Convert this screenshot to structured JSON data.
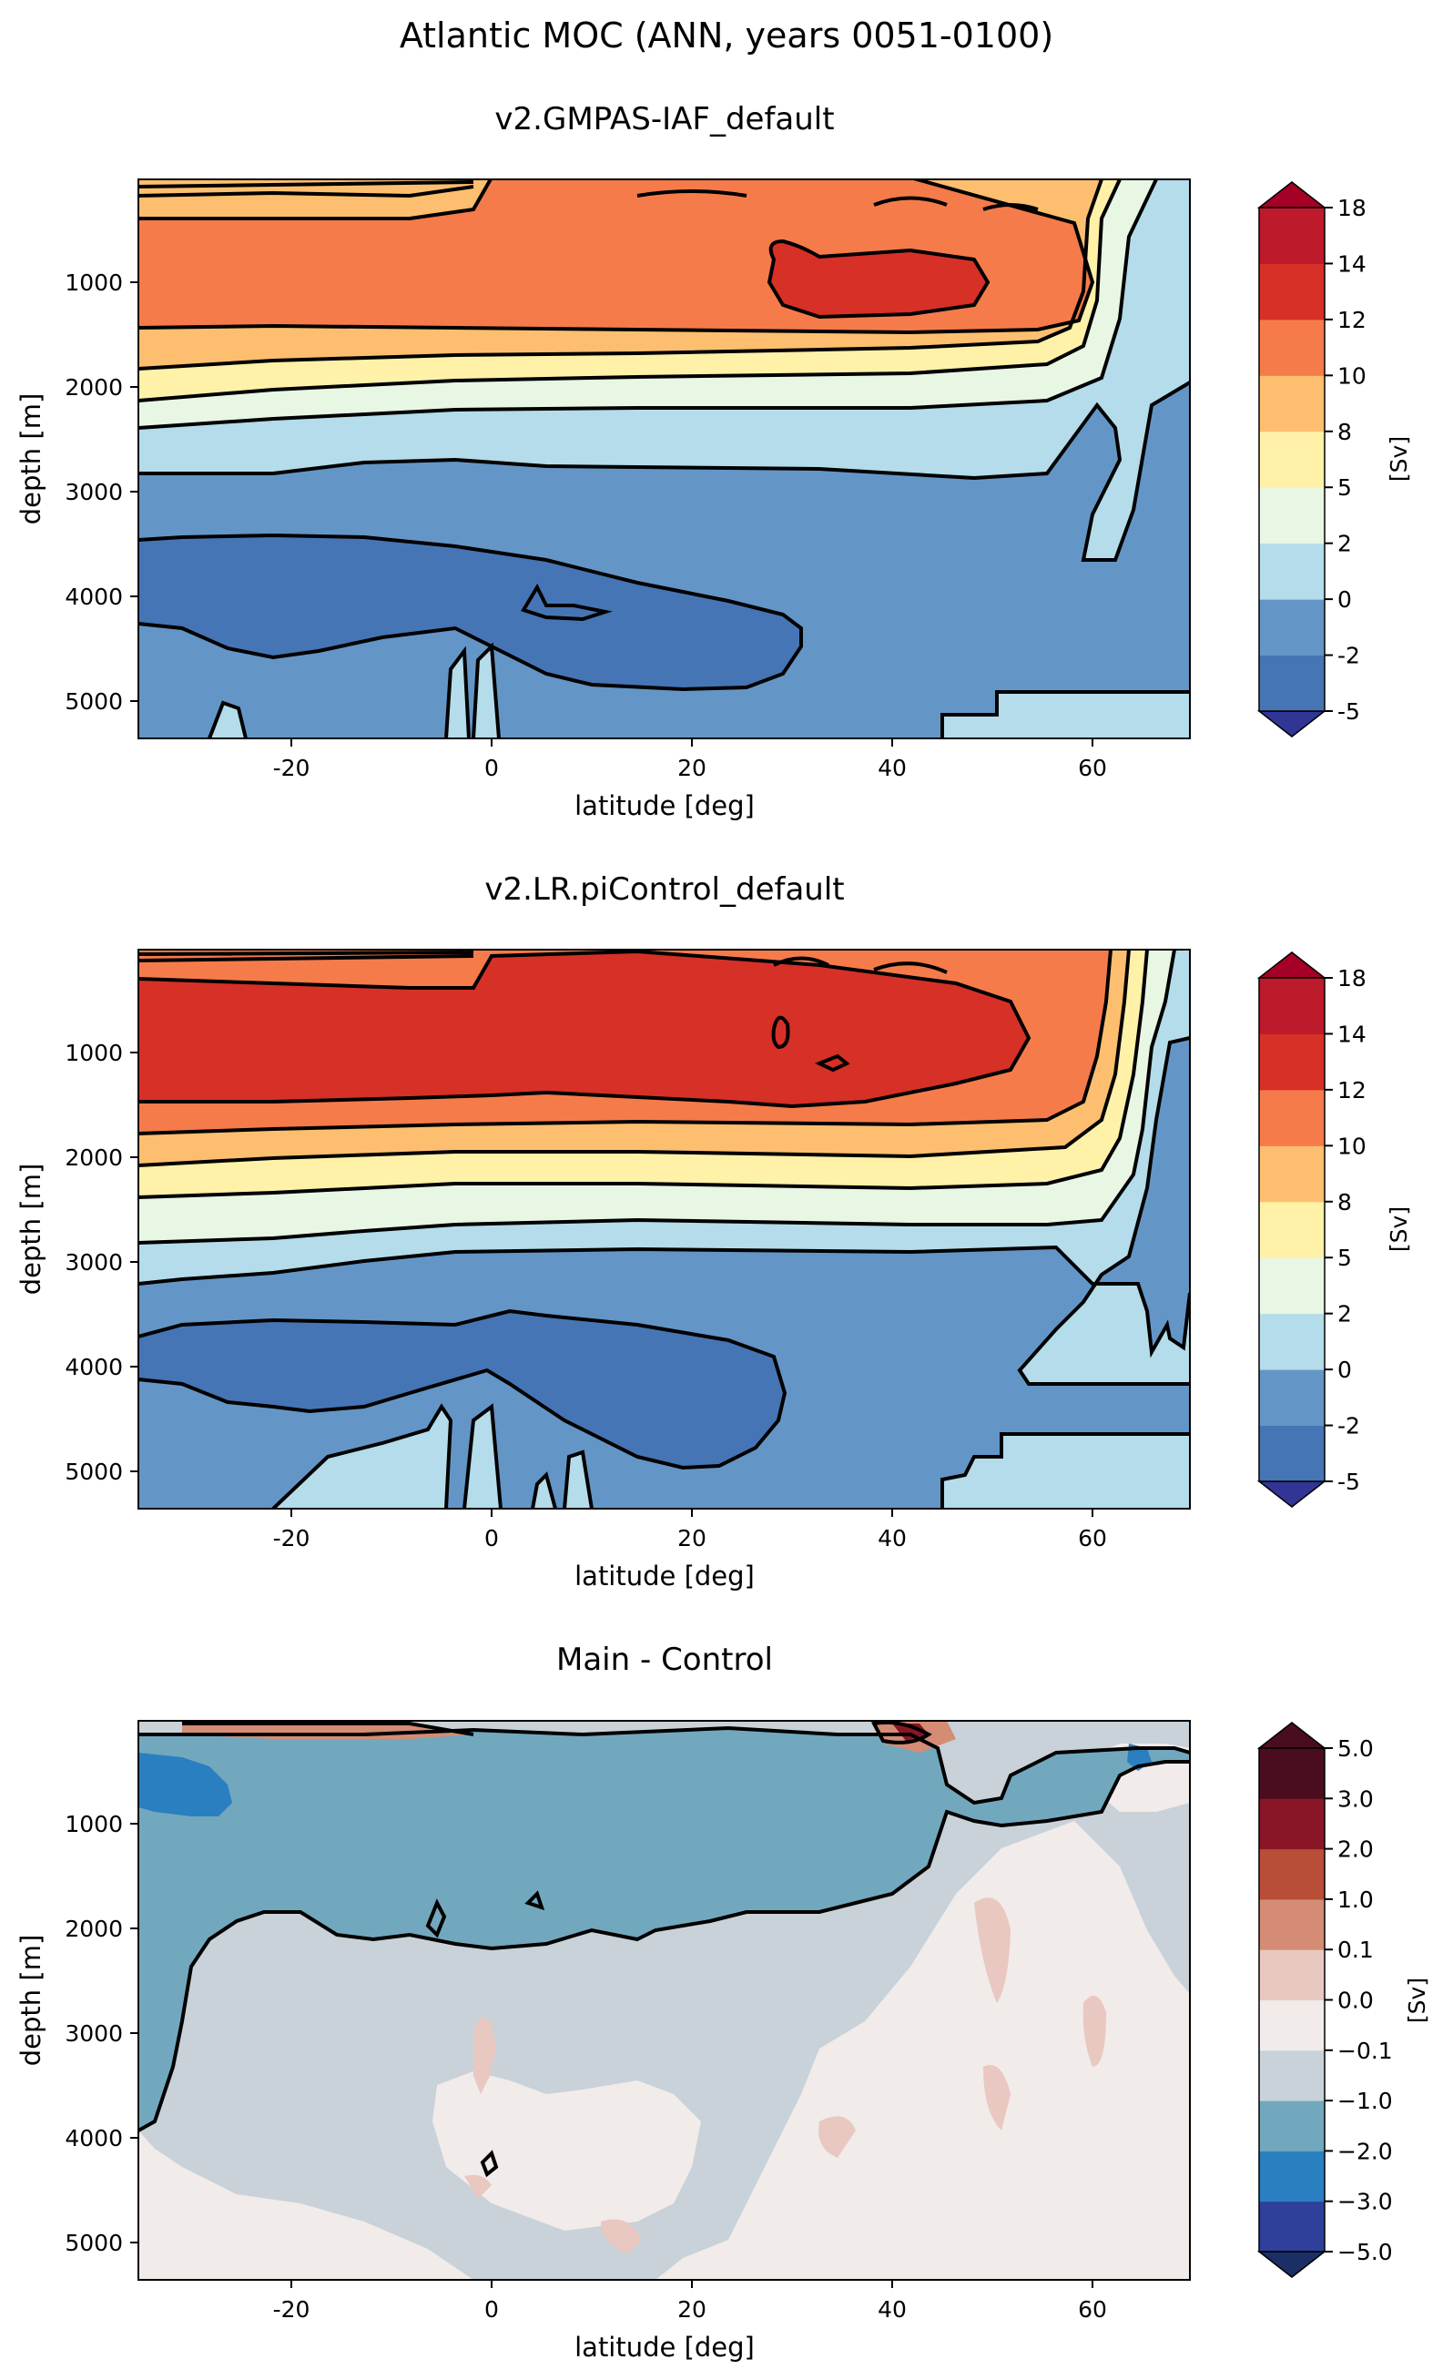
{
  "suptitle": "Atlantic MOC (ANN, years 0051-0100)",
  "colors": {
    "main_levels": [
      "#313695",
      "#4575b4",
      "#6396c6",
      "#b4dcea",
      "#e8f6e4",
      "#fff1a8",
      "#fdbf6f",
      "#f67b4a",
      "#d73027",
      "#bd1a2b",
      "#a50026"
    ],
    "diff_levels": [
      "#1b2f66",
      "#2e409a",
      "#2a7fc1",
      "#72a8bd",
      "#c8d2d8",
      "#f1ebea",
      "#e8c8c0",
      "#d48c74",
      "#b84e37",
      "#8a1526",
      "#4a0d1e"
    ]
  },
  "chart_data": [
    {
      "type": "contourf",
      "title": "v2.GMPAS-IAF_default",
      "xlabel": "latitude [deg]",
      "ylabel": "depth [m]",
      "xlim": [
        -35,
        70
      ],
      "ylim": [
        5400,
        0
      ],
      "xticks": [
        -20,
        0,
        20,
        40,
        60
      ],
      "yticks": [
        1000,
        2000,
        3000,
        4000,
        5000
      ],
      "colorbar": {
        "label": "[Sv]",
        "levels": [
          "-5",
          "-2",
          "0",
          "2",
          "5",
          "8",
          "10",
          "12",
          "14",
          "18"
        ],
        "extend": "both"
      },
      "features": [
        {
          "name": "deep-negative-cell",
          "level": -2,
          "lat_range": [
            -35,
            31
          ],
          "depth_range": [
            3500,
            4500
          ]
        },
        {
          "name": "upper-overturning-core",
          "level": 12,
          "lat_range": [
            -35,
            60
          ],
          "depth_range": [
            400,
            1500
          ]
        },
        {
          "name": "max-core",
          "level": 14,
          "lat_range": [
            28,
            53
          ],
          "depth_range": [
            600,
            1300
          ],
          "value": 14
        }
      ]
    },
    {
      "type": "contourf",
      "title": "v2.LR.piControl_default",
      "xlabel": "latitude [deg]",
      "ylabel": "depth [m]",
      "xlim": [
        -35,
        70
      ],
      "ylim": [
        5400,
        0
      ],
      "xticks": [
        -20,
        0,
        20,
        40,
        60
      ],
      "yticks": [
        1000,
        2000,
        3000,
        4000,
        5000
      ],
      "colorbar": {
        "label": "[Sv]",
        "levels": [
          "-5",
          "-2",
          "0",
          "2",
          "5",
          "8",
          "10",
          "12",
          "14",
          "18"
        ],
        "extend": "both"
      },
      "features": [
        {
          "name": "deep-negative-cell",
          "level": -2,
          "lat_range": [
            -35,
            30
          ],
          "depth_range": [
            3700,
            4500
          ]
        },
        {
          "name": "upper-overturning-core",
          "level": 14,
          "lat_range": [
            -35,
            54
          ],
          "depth_range": [
            300,
            1400
          ]
        }
      ]
    },
    {
      "type": "contourf",
      "title": "Main - Control",
      "xlabel": "latitude [deg]",
      "ylabel": "depth [m]",
      "xlim": [
        -35,
        70
      ],
      "ylim": [
        5400,
        0
      ],
      "xticks": [
        -20,
        0,
        20,
        40,
        60
      ],
      "yticks": [
        1000,
        2000,
        3000,
        4000,
        5000
      ],
      "colorbar": {
        "label": "[Sv]",
        "levels": [
          "−5.0",
          "−3.0",
          "−2.0",
          "−1.0",
          "−0.1",
          "0.0",
          "0.1",
          "1.0",
          "2.0",
          "3.0",
          "5.0"
        ],
        "extend": "both"
      },
      "features": [
        {
          "name": "upper-negative-anomaly",
          "level": -1.0,
          "lat_range": [
            -35,
            70
          ],
          "depth_range": [
            0,
            3000
          ]
        },
        {
          "name": "strong-negative-patch",
          "level": -3.0,
          "lat_range": [
            -35,
            -25
          ],
          "depth_range": [
            300,
            800
          ]
        }
      ]
    }
  ]
}
